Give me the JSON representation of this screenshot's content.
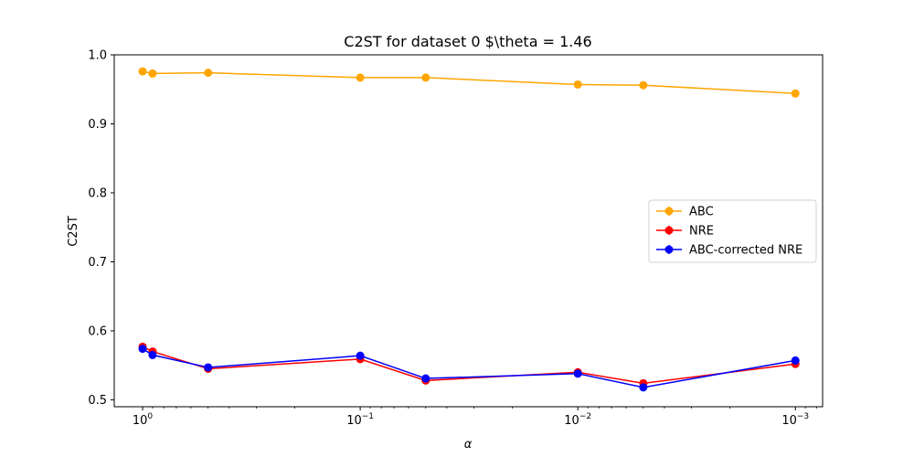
{
  "chart_data": {
    "type": "line",
    "title": "C2ST for dataset 0 $\\theta = 1.46",
    "xlabel": "α",
    "ylabel": "C2ST",
    "x_scale": "log-reversed",
    "xlim": [
      1.35,
      0.00075
    ],
    "ylim": [
      0.49,
      1.0
    ],
    "x_ticks": [
      {
        "value": 1,
        "base": "10",
        "exp": "0"
      },
      {
        "value": 0.1,
        "base": "10",
        "exp": "−1"
      },
      {
        "value": 0.01,
        "base": "10",
        "exp": "−2"
      },
      {
        "value": 0.001,
        "base": "10",
        "exp": "−3"
      }
    ],
    "y_ticks": [
      "0.5",
      "0.6",
      "0.7",
      "0.8",
      "0.9",
      "1.0"
    ],
    "x": [
      1,
      0.9,
      0.5,
      0.1,
      0.05,
      0.01,
      0.005,
      0.001
    ],
    "series": [
      {
        "name": "ABC",
        "color": "#ffa500",
        "values": [
          0.976,
          0.973,
          0.974,
          0.967,
          0.967,
          0.957,
          0.956,
          0.944
        ]
      },
      {
        "name": "NRE",
        "color": "#ff0000",
        "values": [
          0.577,
          0.57,
          0.545,
          0.559,
          0.528,
          0.54,
          0.524,
          0.552
        ]
      },
      {
        "name": "ABC-corrected NRE",
        "color": "#0000ff",
        "values": [
          0.574,
          0.565,
          0.547,
          0.564,
          0.531,
          0.538,
          0.518,
          0.557
        ]
      }
    ],
    "grid": false,
    "legend_position": "center-right"
  }
}
